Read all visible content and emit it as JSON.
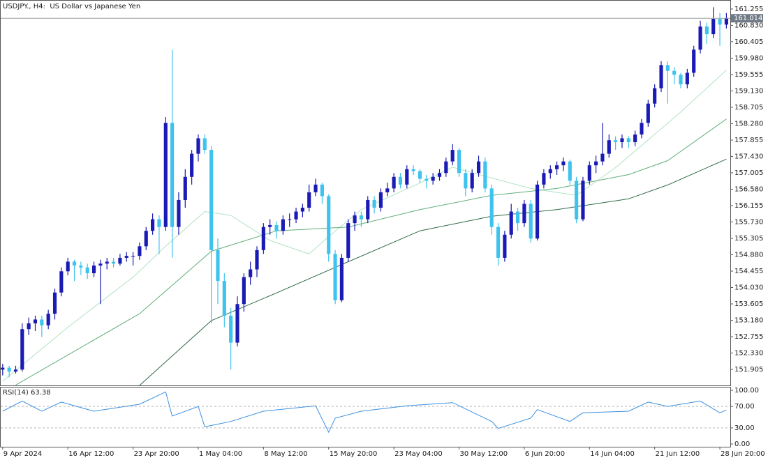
{
  "chart_data": [
    {
      "type": "candlestick",
      "title": "USDJPY., H4:  US Dollar vs Japanese Yen",
      "up_color": "#1a1ab4",
      "down_color": "#3ec3ee",
      "last_price": 161.014,
      "xlim": [
        -0.3,
        111.6
      ],
      "xticks": [
        {
          "value": 0,
          "label": "9 Apr 2024"
        },
        {
          "value": 10,
          "label": "16 Apr 12:00"
        },
        {
          "value": 20,
          "label": "23 Apr 20:00"
        },
        {
          "value": 30,
          "label": "1 May 04:00"
        },
        {
          "value": 40,
          "label": "8 May 12:00"
        },
        {
          "value": 50,
          "label": "15 May 20:00"
        },
        {
          "value": 60,
          "label": "23 May 04:00"
        },
        {
          "value": 70,
          "label": "30 May 12:00"
        },
        {
          "value": 80,
          "label": "6 Jun 20:00"
        },
        {
          "value": 90,
          "label": "14 Jun 04:00"
        },
        {
          "value": 100,
          "label": "21 Jun 12:00"
        },
        {
          "value": 110,
          "label": "28 Jun 20:00"
        }
      ],
      "ylim": [
        151.49,
        161.47
      ],
      "yticks": [
        151.905,
        {
          "value": 152.33,
          "label": "152.330"
        },
        152.755,
        {
          "value": 153.18,
          "label": "153.180"
        },
        153.605,
        {
          "value": 154.03,
          "label": "154.030"
        },
        154.455,
        {
          "value": 154.88,
          "label": "154.880"
        },
        155.305,
        {
          "value": 155.73,
          "label": "155.730"
        },
        156.155,
        {
          "value": 156.58,
          "label": "156.580"
        },
        157.005,
        {
          "value": 157.43,
          "label": "157.430"
        },
        157.855,
        {
          "value": 158.28,
          "label": "158.280"
        },
        158.705,
        {
          "value": 159.13,
          "label": "159.130"
        },
        159.555,
        {
          "value": 159.98,
          "label": "159.980"
        },
        160.405,
        {
          "value": 160.83,
          "label": "160.830"
        },
        161.255
      ],
      "ohlc": [
        [
          151.9,
          152.05,
          151.75,
          151.95
        ],
        [
          151.95,
          152.0,
          151.7,
          151.85
        ],
        [
          151.85,
          152.0,
          151.8,
          151.9
        ],
        [
          151.9,
          153.1,
          151.85,
          152.95
        ],
        [
          152.95,
          153.25,
          152.8,
          153.1
        ],
        [
          153.1,
          153.3,
          152.9,
          153.2
        ],
        [
          153.2,
          153.3,
          152.75,
          153.05
        ],
        [
          153.05,
          153.45,
          152.95,
          153.35
        ],
        [
          153.35,
          154.0,
          153.2,
          153.9
        ],
        [
          153.9,
          154.55,
          153.8,
          154.45
        ],
        [
          154.45,
          154.8,
          154.35,
          154.7
        ],
        [
          154.7,
          154.75,
          154.2,
          154.6
        ],
        [
          154.6,
          154.7,
          154.35,
          154.55
        ],
        [
          154.55,
          154.65,
          154.25,
          154.4
        ],
        [
          154.4,
          154.7,
          154.3,
          154.6
        ],
        [
          154.6,
          154.75,
          153.6,
          154.65
        ],
        [
          154.65,
          154.8,
          154.5,
          154.7
        ],
        [
          154.7,
          154.8,
          154.55,
          154.65
        ],
        [
          154.65,
          154.9,
          154.6,
          154.8
        ],
        [
          154.8,
          154.95,
          154.7,
          154.85
        ],
        [
          154.85,
          154.95,
          154.6,
          154.85
        ],
        [
          154.85,
          155.2,
          154.75,
          155.1
        ],
        [
          155.1,
          155.6,
          155.0,
          155.5
        ],
        [
          155.5,
          155.95,
          155.4,
          155.8
        ],
        [
          155.8,
          155.9,
          154.9,
          155.6
        ],
        [
          155.6,
          158.45,
          155.5,
          158.3
        ],
        [
          158.3,
          160.2,
          154.8,
          155.6
        ],
        [
          155.6,
          156.5,
          155.4,
          156.3
        ],
        [
          156.3,
          157.1,
          156.1,
          156.9
        ],
        [
          156.9,
          157.6,
          156.7,
          157.5
        ],
        [
          157.5,
          158.0,
          157.3,
          157.9
        ],
        [
          157.9,
          158.0,
          157.5,
          157.6
        ],
        [
          157.6,
          157.7,
          153.1,
          155.0
        ],
        [
          155.0,
          155.3,
          153.6,
          154.2
        ],
        [
          154.2,
          154.4,
          153.0,
          153.3
        ],
        [
          153.3,
          153.5,
          151.9,
          152.6
        ],
        [
          152.6,
          153.8,
          152.5,
          153.6
        ],
        [
          153.6,
          154.4,
          153.4,
          154.3
        ],
        [
          154.3,
          154.7,
          154.1,
          154.5
        ],
        [
          154.5,
          155.1,
          154.3,
          155.0
        ],
        [
          155.0,
          155.7,
          154.9,
          155.6
        ],
        [
          155.6,
          155.8,
          155.4,
          155.65
        ],
        [
          155.65,
          155.75,
          155.3,
          155.5
        ],
        [
          155.5,
          155.9,
          155.4,
          155.8
        ],
        [
          155.8,
          155.95,
          155.6,
          155.8
        ],
        [
          155.8,
          156.1,
          155.7,
          156.0
        ],
        [
          156.0,
          156.2,
          155.85,
          156.1
        ],
        [
          156.1,
          156.7,
          156.0,
          156.5
        ],
        [
          156.5,
          156.85,
          156.4,
          156.7
        ],
        [
          156.7,
          156.75,
          156.2,
          156.4
        ],
        [
          156.4,
          156.45,
          154.7,
          154.9
        ],
        [
          154.9,
          155.0,
          153.6,
          153.7
        ],
        [
          153.7,
          154.9,
          153.65,
          154.8
        ],
        [
          154.8,
          155.8,
          154.7,
          155.7
        ],
        [
          155.7,
          156.0,
          155.5,
          155.9
        ],
        [
          155.9,
          156.0,
          155.6,
          155.8
        ],
        [
          155.8,
          156.4,
          155.7,
          156.3
        ],
        [
          156.3,
          156.4,
          155.95,
          156.1
        ],
        [
          156.1,
          156.6,
          156.0,
          156.5
        ],
        [
          156.5,
          156.75,
          156.4,
          156.6
        ],
        [
          156.6,
          157.0,
          156.5,
          156.9
        ],
        [
          156.9,
          157.0,
          156.6,
          156.7
        ],
        [
          156.7,
          157.2,
          156.6,
          157.1
        ],
        [
          157.1,
          157.2,
          156.95,
          157.05
        ],
        [
          157.05,
          157.1,
          156.75,
          156.85
        ],
        [
          156.85,
          156.95,
          156.6,
          156.8
        ],
        [
          156.8,
          157.0,
          156.7,
          156.9
        ],
        [
          156.9,
          157.1,
          156.8,
          157.0
        ],
        [
          157.0,
          157.4,
          156.9,
          157.3
        ],
        [
          157.3,
          157.75,
          157.2,
          157.6
        ],
        [
          157.6,
          157.65,
          156.9,
          157.0
        ],
        [
          157.0,
          157.1,
          156.4,
          156.6
        ],
        [
          156.6,
          157.1,
          156.5,
          157.0
        ],
        [
          157.0,
          157.45,
          156.9,
          157.3
        ],
        [
          157.3,
          157.4,
          156.5,
          156.6
        ],
        [
          156.6,
          156.7,
          155.4,
          155.6
        ],
        [
          155.6,
          155.7,
          154.6,
          154.8
        ],
        [
          154.8,
          155.5,
          154.7,
          155.4
        ],
        [
          155.4,
          156.2,
          155.3,
          156.0
        ],
        [
          156.0,
          156.1,
          155.5,
          155.7
        ],
        [
          155.7,
          156.3,
          155.6,
          156.2
        ],
        [
          156.2,
          156.3,
          155.2,
          155.3
        ],
        [
          155.3,
          156.8,
          155.25,
          156.7
        ],
        [
          156.7,
          157.1,
          156.6,
          157.0
        ],
        [
          157.0,
          157.2,
          156.85,
          157.1
        ],
        [
          157.1,
          157.3,
          156.95,
          157.2
        ],
        [
          157.2,
          157.4,
          157.05,
          157.3
        ],
        [
          157.3,
          157.35,
          156.7,
          156.8
        ],
        [
          156.8,
          156.9,
          155.7,
          155.8
        ],
        [
          155.8,
          156.9,
          155.75,
          156.8
        ],
        [
          156.8,
          157.3,
          156.7,
          157.2
        ],
        [
          157.2,
          157.45,
          157.0,
          157.3
        ],
        [
          157.3,
          158.3,
          157.2,
          157.5
        ],
        [
          157.5,
          158.0,
          157.4,
          157.85
        ],
        [
          157.85,
          157.95,
          157.6,
          157.8
        ],
        [
          157.8,
          158.0,
          157.65,
          157.9
        ],
        [
          157.9,
          157.95,
          157.65,
          157.8
        ],
        [
          157.8,
          158.1,
          157.7,
          158.0
        ],
        [
          158.0,
          158.4,
          157.9,
          158.3
        ],
        [
          158.3,
          158.9,
          158.2,
          158.8
        ],
        [
          158.8,
          159.3,
          158.7,
          159.2
        ],
        [
          159.2,
          159.9,
          159.1,
          159.8
        ],
        [
          159.8,
          159.9,
          158.8,
          159.65
        ],
        [
          159.65,
          159.75,
          159.3,
          159.55
        ],
        [
          159.55,
          159.6,
          159.2,
          159.3
        ],
        [
          159.3,
          159.7,
          159.2,
          159.6
        ],
        [
          159.6,
          160.3,
          159.5,
          160.2
        ],
        [
          160.2,
          160.95,
          160.1,
          160.8
        ],
        [
          160.8,
          160.9,
          160.35,
          160.6
        ],
        [
          160.6,
          161.3,
          160.5,
          161.0
        ],
        [
          161.0,
          161.15,
          160.3,
          160.85
        ],
        [
          160.85,
          161.15,
          160.75,
          161.01
        ]
      ],
      "lines": [
        {
          "color": "#b3e2c3",
          "x": [
            0,
            10,
            20,
            25,
            31,
            35,
            41,
            47,
            50,
            55,
            64,
            69,
            75,
            81,
            88,
            94,
            99,
            104,
            111
          ],
          "values": [
            151.6,
            153.0,
            154.3,
            155.1,
            156.0,
            155.9,
            155.25,
            154.9,
            155.35,
            156.05,
            156.74,
            157.15,
            156.87,
            156.6,
            156.42,
            157.14,
            157.86,
            158.58,
            159.67
          ]
        },
        {
          "color": "#5fae7a",
          "x": [
            2,
            21,
            32,
            42,
            53,
            64,
            75,
            85,
            96,
            102,
            111
          ],
          "values": [
            151.5,
            153.35,
            154.97,
            155.5,
            155.6,
            156.05,
            156.42,
            156.6,
            156.96,
            157.32,
            158.4
          ]
        },
        {
          "color": "#2e6b45",
          "x": [
            21,
            32,
            42,
            53,
            64,
            75,
            85,
            96,
            102,
            111
          ],
          "values": [
            151.49,
            153.17,
            153.89,
            154.7,
            155.5,
            155.88,
            156.05,
            156.33,
            156.69,
            157.36
          ]
        }
      ]
    },
    {
      "type": "line",
      "title": "RSI(14) 63.38",
      "color": "#3a8fe0",
      "ylim": [
        0,
        100
      ],
      "yticks": [
        {
          "value": 100,
          "label": "100.00"
        },
        {
          "value": 70,
          "label": "70.00"
        },
        {
          "value": 30,
          "label": "30.00"
        },
        {
          "value": 0,
          "label": "0.00"
        }
      ],
      "levels": [
        70,
        30
      ],
      "x": [
        0,
        3,
        6,
        9,
        14,
        21,
        25,
        26,
        30,
        31,
        35,
        40,
        48,
        50,
        51,
        55,
        62,
        69,
        75,
        76,
        81,
        82,
        87,
        89,
        96,
        99,
        102,
        107,
        110,
        111
      ],
      "values": [
        61,
        80,
        61,
        78,
        61,
        74,
        97,
        52,
        70,
        32,
        42,
        61,
        71,
        22,
        48,
        61,
        71,
        77,
        42,
        29,
        48,
        64,
        42,
        58,
        61,
        78,
        70,
        80,
        58,
        63.38
      ]
    }
  ]
}
